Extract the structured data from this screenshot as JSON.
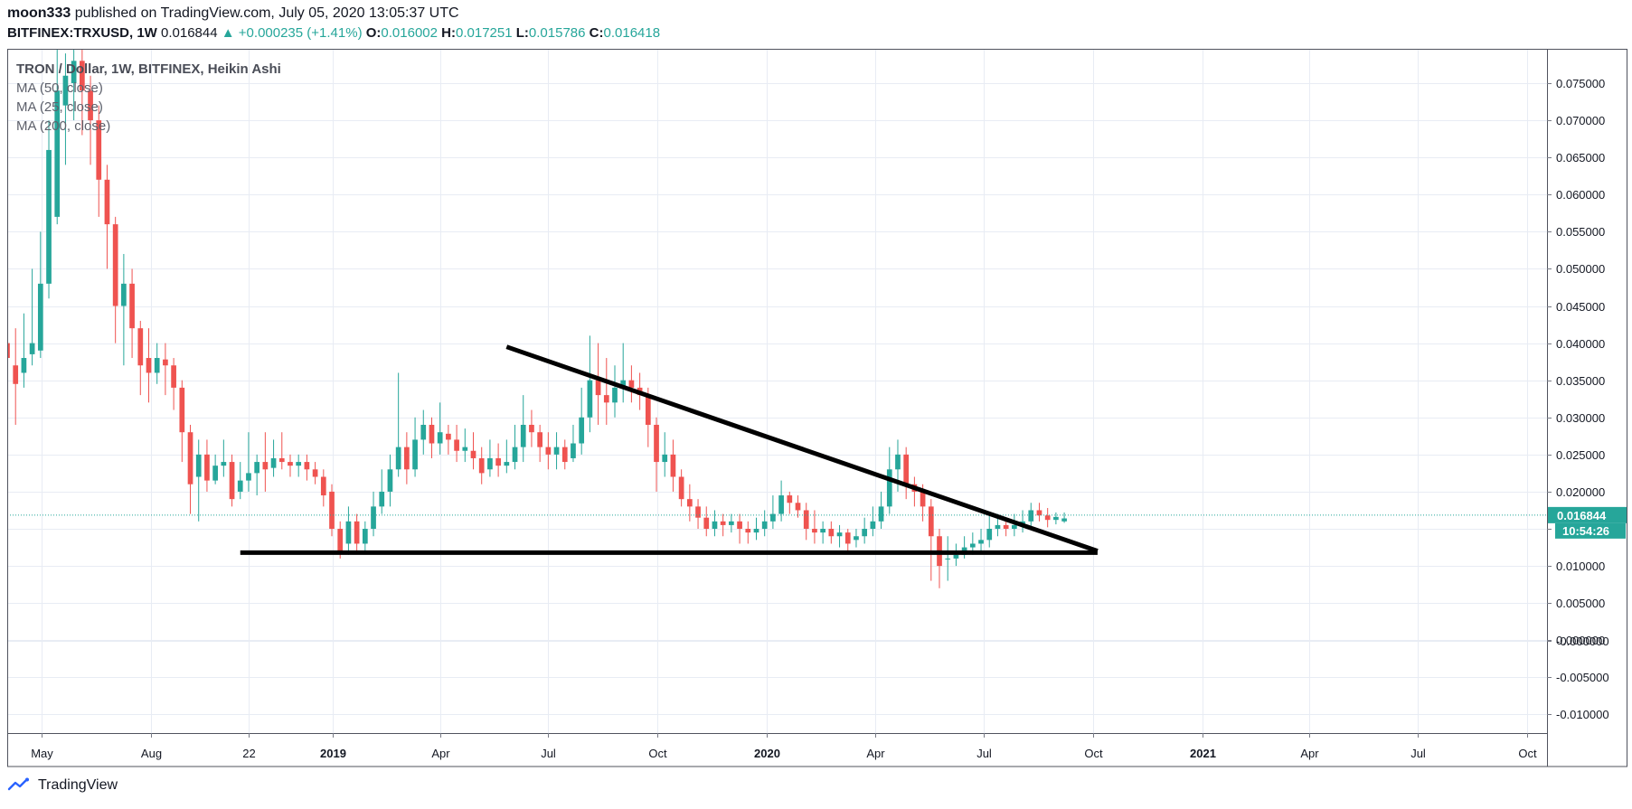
{
  "header": {
    "author": "moon333",
    "published_text": " published on TradingView.com, July 05, 2020 13:05:37 UTC",
    "symbol": "BITFINEX:TRXUSD, 1W",
    "last": "0.016844",
    "change_arrow": "▲",
    "change": "+0.000235 (+1.41%)",
    "o_label": "O:",
    "o_value": "0.016002",
    "h_label": "H:",
    "h_value": "0.017251",
    "l_label": "L:",
    "l_value": "0.015786",
    "c_label": "C:",
    "c_value": "0.016418"
  },
  "legend": {
    "title": "TRON / Dollar, 1W, BITFINEX, Heikin Ashi",
    "ma1": "MA (50, close)",
    "ma2": "MA (25, close)",
    "ma3": "MA (200, close)"
  },
  "footer": {
    "brand": "TradingView",
    "logo_icon": "tradingview-logo-icon"
  },
  "colors": {
    "up": "#26a69a",
    "down": "#ef5350",
    "grid": "#e8ecf4",
    "price_line": "#26a69a",
    "drawing": "#000000"
  },
  "chart_data": {
    "type": "candlestick",
    "style": "Heikin Ashi",
    "y_range": [
      -0.0125,
      0.0795
    ],
    "x_range": [
      "2018-04-02",
      "2021-10-18"
    ],
    "y_ticks": [
      "0.075000",
      "0.070000",
      "0.065000",
      "0.060000",
      "0.055000",
      "0.050000",
      "0.045000",
      "0.040000",
      "0.035000",
      "0.030000",
      "0.025000",
      "0.020000",
      "0.015000",
      "0.010000",
      "0.005000",
      "0.000000",
      "-0.000000",
      "-0.005000",
      "-0.010000"
    ],
    "y_tick_values": [
      0.075,
      0.07,
      0.065,
      0.06,
      0.055,
      0.05,
      0.045,
      0.04,
      0.035,
      0.03,
      0.025,
      0.02,
      0.015,
      0.01,
      0.005,
      0.0,
      -0.0,
      -0.005,
      -0.01
    ],
    "x_ticks": [
      {
        "label": "May",
        "date": "2018-05-01",
        "bold": false
      },
      {
        "label": "Aug",
        "date": "2018-08-01",
        "bold": false
      },
      {
        "label": "22",
        "date": "2018-10-22",
        "bold": false
      },
      {
        "label": "2019",
        "date": "2019-01-01",
        "bold": true
      },
      {
        "label": "Apr",
        "date": "2019-04-01",
        "bold": false
      },
      {
        "label": "Jul",
        "date": "2019-07-01",
        "bold": false
      },
      {
        "label": "Oct",
        "date": "2019-10-01",
        "bold": false
      },
      {
        "label": "2020",
        "date": "2020-01-01",
        "bold": true
      },
      {
        "label": "Apr",
        "date": "2020-04-01",
        "bold": false
      },
      {
        "label": "Jul",
        "date": "2020-07-01",
        "bold": false
      },
      {
        "label": "Oct",
        "date": "2020-10-01",
        "bold": false
      },
      {
        "label": "2021",
        "date": "2021-01-01",
        "bold": true
      },
      {
        "label": "Apr",
        "date": "2021-04-01",
        "bold": false
      },
      {
        "label": "Jul",
        "date": "2021-07-01",
        "bold": false
      },
      {
        "label": "Oct",
        "date": "2021-10-01",
        "bold": false
      }
    ],
    "first_candle": "2018-04-02",
    "interval": "1W",
    "candles": [
      [
        0.04,
        0.038,
        0.056,
        0.028
      ],
      [
        0.037,
        0.0345,
        0.042,
        0.029
      ],
      [
        0.036,
        0.038,
        0.044,
        0.034
      ],
      [
        0.0385,
        0.04,
        0.05,
        0.037
      ],
      [
        0.039,
        0.048,
        0.055,
        0.038
      ],
      [
        0.048,
        0.066,
        0.07,
        0.046
      ],
      [
        0.057,
        0.074,
        0.08,
        0.056
      ],
      [
        0.072,
        0.076,
        0.079,
        0.064
      ],
      [
        0.075,
        0.078,
        0.08,
        0.07
      ],
      [
        0.078,
        0.074,
        0.08,
        0.068
      ],
      [
        0.074,
        0.07,
        0.076,
        0.064
      ],
      [
        0.07,
        0.062,
        0.072,
        0.057
      ],
      [
        0.062,
        0.056,
        0.064,
        0.05
      ],
      [
        0.056,
        0.045,
        0.057,
        0.04
      ],
      [
        0.045,
        0.048,
        0.052,
        0.037
      ],
      [
        0.048,
        0.042,
        0.05,
        0.038
      ],
      [
        0.042,
        0.037,
        0.043,
        0.033
      ],
      [
        0.038,
        0.036,
        0.042,
        0.032
      ],
      [
        0.036,
        0.038,
        0.04,
        0.0345
      ],
      [
        0.0378,
        0.037,
        0.04,
        0.033
      ],
      [
        0.037,
        0.034,
        0.038,
        0.031
      ],
      [
        0.034,
        0.028,
        0.035,
        0.024
      ],
      [
        0.028,
        0.021,
        0.029,
        0.017
      ],
      [
        0.022,
        0.025,
        0.027,
        0.016
      ],
      [
        0.025,
        0.0215,
        0.027,
        0.02
      ],
      [
        0.0215,
        0.0235,
        0.025,
        0.021
      ],
      [
        0.0235,
        0.024,
        0.027,
        0.022
      ],
      [
        0.024,
        0.019,
        0.025,
        0.018
      ],
      [
        0.02,
        0.0215,
        0.024,
        0.019
      ],
      [
        0.0215,
        0.0225,
        0.028,
        0.02
      ],
      [
        0.0225,
        0.024,
        0.025,
        0.0195
      ],
      [
        0.024,
        0.023,
        0.028,
        0.02
      ],
      [
        0.0232,
        0.0245,
        0.027,
        0.022
      ],
      [
        0.0245,
        0.024,
        0.028,
        0.023
      ],
      [
        0.024,
        0.0235,
        0.025,
        0.022
      ],
      [
        0.0235,
        0.024,
        0.025,
        0.022
      ],
      [
        0.024,
        0.023,
        0.025,
        0.0215
      ],
      [
        0.023,
        0.022,
        0.024,
        0.021
      ],
      [
        0.022,
        0.0195,
        0.023,
        0.018
      ],
      [
        0.02,
        0.015,
        0.021,
        0.014
      ],
      [
        0.015,
        0.012,
        0.016,
        0.011
      ],
      [
        0.013,
        0.016,
        0.018,
        0.0115
      ],
      [
        0.016,
        0.013,
        0.017,
        0.012
      ],
      [
        0.013,
        0.015,
        0.016,
        0.012
      ],
      [
        0.015,
        0.018,
        0.02,
        0.014
      ],
      [
        0.018,
        0.02,
        0.023,
        0.017
      ],
      [
        0.02,
        0.023,
        0.025,
        0.018
      ],
      [
        0.023,
        0.026,
        0.036,
        0.022
      ],
      [
        0.026,
        0.023,
        0.028,
        0.021
      ],
      [
        0.023,
        0.027,
        0.03,
        0.022
      ],
      [
        0.027,
        0.029,
        0.031,
        0.025
      ],
      [
        0.029,
        0.0265,
        0.03,
        0.0245
      ],
      [
        0.0265,
        0.028,
        0.032,
        0.025
      ],
      [
        0.0278,
        0.027,
        0.029,
        0.025
      ],
      [
        0.027,
        0.0255,
        0.029,
        0.024
      ],
      [
        0.0255,
        0.026,
        0.0285,
        0.024
      ],
      [
        0.0255,
        0.0245,
        0.028,
        0.023
      ],
      [
        0.0245,
        0.0225,
        0.026,
        0.021
      ],
      [
        0.023,
        0.0245,
        0.027,
        0.022
      ],
      [
        0.0245,
        0.0235,
        0.0265,
        0.022
      ],
      [
        0.0235,
        0.024,
        0.027,
        0.0225
      ],
      [
        0.024,
        0.026,
        0.029,
        0.023
      ],
      [
        0.026,
        0.029,
        0.033,
        0.024
      ],
      [
        0.029,
        0.028,
        0.031,
        0.026
      ],
      [
        0.028,
        0.026,
        0.029,
        0.024
      ],
      [
        0.026,
        0.025,
        0.028,
        0.023
      ],
      [
        0.025,
        0.026,
        0.028,
        0.023
      ],
      [
        0.026,
        0.024,
        0.027,
        0.023
      ],
      [
        0.0245,
        0.0265,
        0.029,
        0.024
      ],
      [
        0.0265,
        0.03,
        0.034,
        0.025
      ],
      [
        0.03,
        0.035,
        0.041,
        0.028
      ],
      [
        0.035,
        0.033,
        0.04,
        0.029
      ],
      [
        0.033,
        0.032,
        0.038,
        0.029
      ],
      [
        0.032,
        0.034,
        0.037,
        0.03
      ],
      [
        0.034,
        0.035,
        0.04,
        0.032
      ],
      [
        0.035,
        0.034,
        0.037,
        0.032
      ],
      [
        0.034,
        0.033,
        0.036,
        0.031
      ],
      [
        0.033,
        0.029,
        0.034,
        0.026
      ],
      [
        0.029,
        0.024,
        0.03,
        0.02
      ],
      [
        0.024,
        0.025,
        0.028,
        0.022
      ],
      [
        0.025,
        0.022,
        0.027,
        0.02
      ],
      [
        0.022,
        0.019,
        0.023,
        0.018
      ],
      [
        0.019,
        0.018,
        0.021,
        0.016
      ],
      [
        0.018,
        0.0165,
        0.019,
        0.015
      ],
      [
        0.0165,
        0.015,
        0.018,
        0.014
      ],
      [
        0.015,
        0.016,
        0.0175,
        0.014
      ],
      [
        0.016,
        0.0155,
        0.017,
        0.014
      ],
      [
        0.0155,
        0.016,
        0.017,
        0.0145
      ],
      [
        0.016,
        0.015,
        0.017,
        0.013
      ],
      [
        0.015,
        0.0145,
        0.016,
        0.013
      ],
      [
        0.0145,
        0.015,
        0.0165,
        0.0135
      ],
      [
        0.015,
        0.016,
        0.0175,
        0.014
      ],
      [
        0.016,
        0.017,
        0.0195,
        0.015
      ],
      [
        0.017,
        0.0195,
        0.0215,
        0.016
      ],
      [
        0.0195,
        0.0185,
        0.02,
        0.017
      ],
      [
        0.0185,
        0.0175,
        0.0195,
        0.0165
      ],
      [
        0.0175,
        0.015,
        0.0185,
        0.0135
      ],
      [
        0.015,
        0.0145,
        0.0175,
        0.013
      ],
      [
        0.0145,
        0.015,
        0.016,
        0.013
      ],
      [
        0.015,
        0.014,
        0.016,
        0.013
      ],
      [
        0.014,
        0.0145,
        0.0155,
        0.0125
      ],
      [
        0.0145,
        0.013,
        0.015,
        0.012
      ],
      [
        0.0135,
        0.014,
        0.015,
        0.0125
      ],
      [
        0.014,
        0.015,
        0.0165,
        0.013
      ],
      [
        0.015,
        0.016,
        0.018,
        0.014
      ],
      [
        0.016,
        0.018,
        0.02,
        0.015
      ],
      [
        0.018,
        0.023,
        0.026,
        0.017
      ],
      [
        0.023,
        0.025,
        0.027,
        0.02
      ],
      [
        0.025,
        0.021,
        0.026,
        0.019
      ],
      [
        0.021,
        0.02,
        0.022,
        0.018
      ],
      [
        0.02,
        0.018,
        0.021,
        0.016
      ],
      [
        0.018,
        0.014,
        0.019,
        0.008
      ],
      [
        0.014,
        0.01,
        0.015,
        0.007
      ],
      [
        0.011,
        0.011,
        0.014,
        0.008
      ],
      [
        0.011,
        0.0115,
        0.013,
        0.01
      ],
      [
        0.0115,
        0.0125,
        0.014,
        0.011
      ],
      [
        0.0125,
        0.013,
        0.0145,
        0.0115
      ],
      [
        0.013,
        0.0135,
        0.015,
        0.012
      ],
      [
        0.0135,
        0.015,
        0.017,
        0.0125
      ],
      [
        0.015,
        0.0155,
        0.017,
        0.014
      ],
      [
        0.0155,
        0.015,
        0.0165,
        0.014
      ],
      [
        0.015,
        0.0155,
        0.017,
        0.014
      ],
      [
        0.0155,
        0.016,
        0.0175,
        0.0145
      ],
      [
        0.016,
        0.0175,
        0.0185,
        0.015
      ],
      [
        0.0175,
        0.0168,
        0.0185,
        0.016
      ],
      [
        0.0168,
        0.0162,
        0.0178,
        0.0152
      ],
      [
        0.0162,
        0.0166,
        0.0172,
        0.0156
      ],
      [
        0.016,
        0.0164,
        0.0172,
        0.0158
      ]
    ],
    "current_price": 0.016844,
    "current_price_label": "0.016844",
    "countdown_label": "10:54:26",
    "drawings": [
      {
        "name": "resistance-trendline",
        "from": {
          "date": "2019-05-27",
          "price": 0.0395
        },
        "to": {
          "date": "2020-10-05",
          "price": 0.012
        }
      },
      {
        "name": "support-line",
        "from": {
          "date": "2018-10-15",
          "price": 0.0118
        },
        "to": {
          "date": "2020-10-05",
          "price": 0.0118
        }
      }
    ]
  }
}
